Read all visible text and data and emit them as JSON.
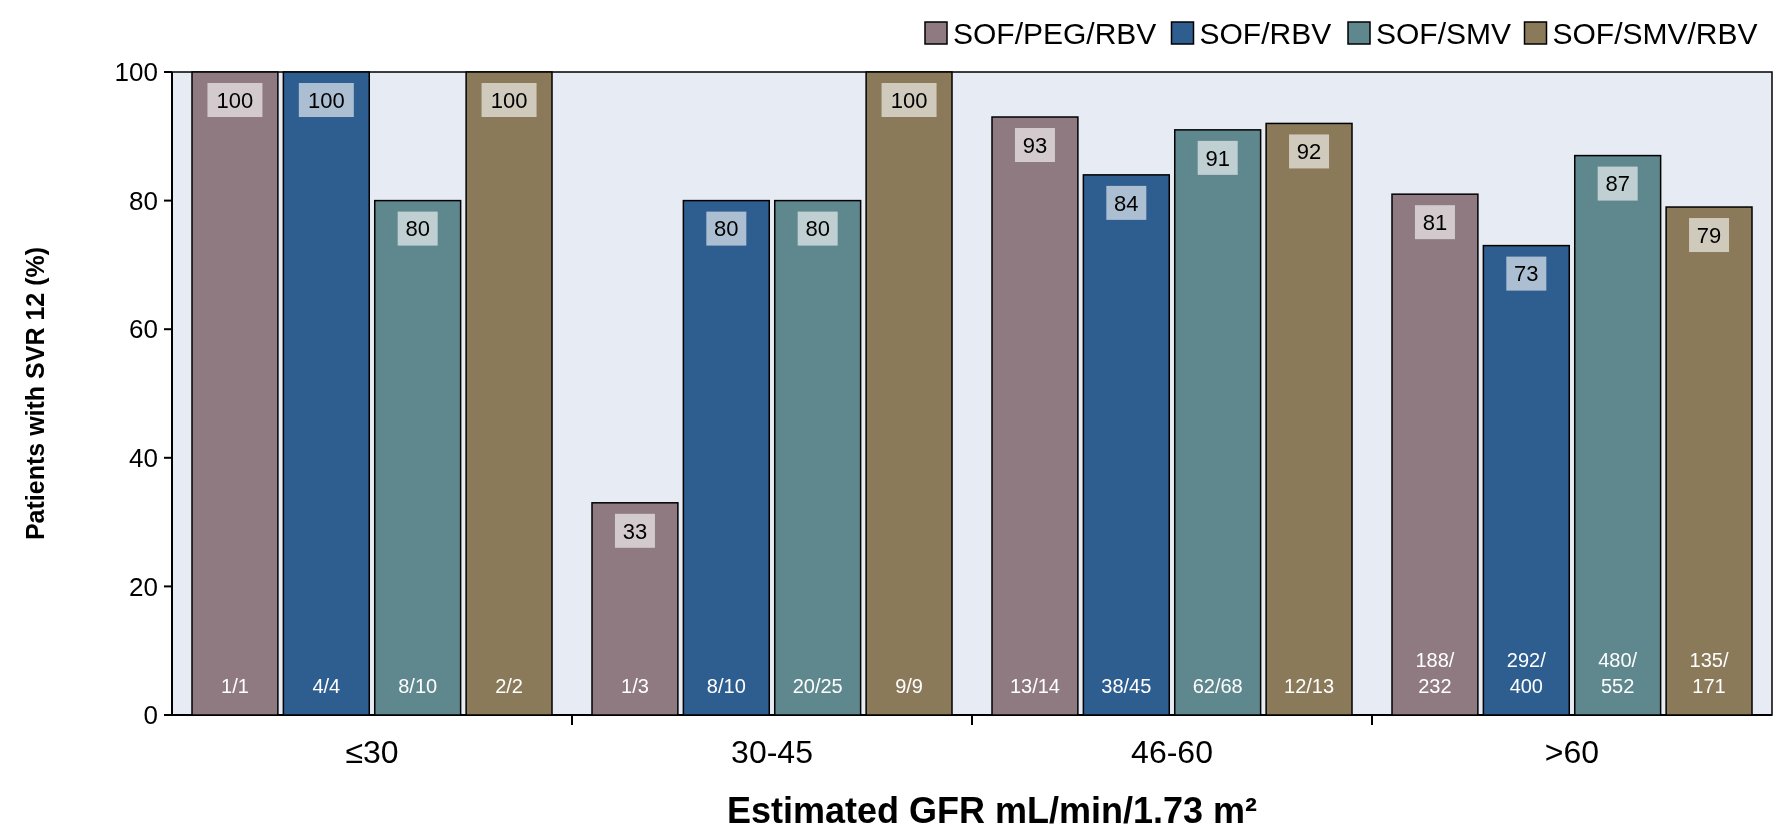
{
  "chart_data": {
    "type": "bar",
    "xlabel": "Estimated GFR mL/min/1.73 m²",
    "ylabel": "Patients with SVR 12 (%)",
    "categories": [
      "≤30",
      "30-45",
      "46-60",
      ">60"
    ],
    "series": [
      {
        "name": "SOF/PEG/RBV",
        "color": "#8e7a80",
        "values": [
          100,
          33,
          93,
          81
        ]
      },
      {
        "name": "SOF/RBV",
        "color": "#2e5d8f",
        "values": [
          100,
          80,
          84,
          73
        ]
      },
      {
        "name": "SOF/SMV",
        "color": "#5f878e",
        "values": [
          80,
          80,
          91,
          87
        ]
      },
      {
        "name": "SOF/SMV/RBV",
        "color": "#8a7a5a",
        "values": [
          100,
          100,
          92,
          79
        ]
      }
    ],
    "ylim": [
      0,
      100
    ],
    "yticks": [
      0,
      20,
      40,
      60,
      80,
      100
    ],
    "grid": false,
    "legend": "top right",
    "data_labels": true,
    "annotations": [
      "1/1",
      "4/4",
      "8/10",
      "2/2",
      "1/3",
      "8/10",
      "20/25",
      "9/9",
      "13/14",
      "38/45",
      "62/68",
      "12/13",
      "188/232",
      "292/400",
      "480/552",
      "135/171"
    ]
  }
}
